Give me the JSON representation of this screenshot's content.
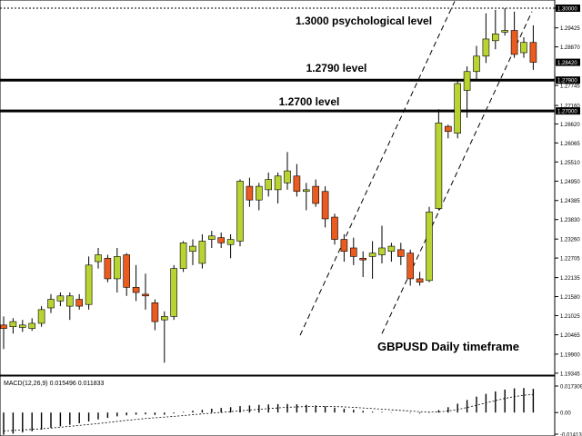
{
  "chart_data": {
    "type": "candlestick",
    "symbol_caption": "GBPUSD Daily timeframe",
    "colors": {
      "bull": "#b8d432",
      "bear": "#ea5b20",
      "wick": "#000000",
      "level_line": "#000000",
      "dotted_line": "#000000",
      "channel": "#000000",
      "highlight_label": "#000000",
      "label_text": "#ffffff"
    },
    "price_axis": {
      "range": [
        1.1934,
        1.3
      ],
      "ticks": [
        "1.30000",
        "1.29425",
        "1.28870",
        "1.27745",
        "1.27160",
        "1.26620",
        "1.26065",
        "1.25510",
        "1.24950",
        "1.24385",
        "1.23830",
        "1.23260",
        "1.22705",
        "1.22135",
        "1.21580",
        "1.21025",
        "1.20465",
        "1.19900",
        "1.19345"
      ]
    },
    "highlighted_prices": [
      "1.30000",
      "1.28420",
      "1.27900",
      "1.27000"
    ],
    "levels": [
      {
        "label": "1.3000 psychological level",
        "price": 1.3,
        "style": "dotted"
      },
      {
        "label": "1.2790 level",
        "price": 1.279,
        "style": "solid"
      },
      {
        "label": "1.2700 level",
        "price": 1.27,
        "style": "solid"
      }
    ],
    "candles": [
      {
        "o": 1.2075,
        "h": 1.21,
        "l": 1.2005,
        "c": 1.2065
      },
      {
        "o": 1.207,
        "h": 1.2095,
        "l": 1.205,
        "c": 1.2085
      },
      {
        "o": 1.2068,
        "h": 1.209,
        "l": 1.2055,
        "c": 1.2075
      },
      {
        "o": 1.2065,
        "h": 1.2095,
        "l": 1.2058,
        "c": 1.208
      },
      {
        "o": 1.208,
        "h": 1.213,
        "l": 1.207,
        "c": 1.212
      },
      {
        "o": 1.2125,
        "h": 1.2165,
        "l": 1.211,
        "c": 1.215
      },
      {
        "o": 1.2145,
        "h": 1.217,
        "l": 1.213,
        "c": 1.216
      },
      {
        "o": 1.213,
        "h": 1.217,
        "l": 1.209,
        "c": 1.216
      },
      {
        "o": 1.215,
        "h": 1.2165,
        "l": 1.212,
        "c": 1.213
      },
      {
        "o": 1.2135,
        "h": 1.2275,
        "l": 1.212,
        "c": 1.225
      },
      {
        "o": 1.226,
        "h": 1.23,
        "l": 1.224,
        "c": 1.228
      },
      {
        "o": 1.227,
        "h": 1.228,
        "l": 1.22,
        "c": 1.221
      },
      {
        "o": 1.221,
        "h": 1.23,
        "l": 1.217,
        "c": 1.2275
      },
      {
        "o": 1.228,
        "h": 1.2285,
        "l": 1.216,
        "c": 1.2185
      },
      {
        "o": 1.2185,
        "h": 1.225,
        "l": 1.2145,
        "c": 1.217
      },
      {
        "o": 1.2165,
        "h": 1.2225,
        "l": 1.212,
        "c": 1.216
      },
      {
        "o": 1.214,
        "h": 1.215,
        "l": 1.206,
        "c": 1.2085
      },
      {
        "o": 1.209,
        "h": 1.2115,
        "l": 1.1965,
        "c": 1.21
      },
      {
        "o": 1.21,
        "h": 1.225,
        "l": 1.209,
        "c": 1.224
      },
      {
        "o": 1.224,
        "h": 1.232,
        "l": 1.223,
        "c": 1.2315
      },
      {
        "o": 1.229,
        "h": 1.2325,
        "l": 1.225,
        "c": 1.2305
      },
      {
        "o": 1.2255,
        "h": 1.234,
        "l": 1.224,
        "c": 1.232
      },
      {
        "o": 1.2325,
        "h": 1.235,
        "l": 1.23,
        "c": 1.2335
      },
      {
        "o": 1.233,
        "h": 1.2345,
        "l": 1.23,
        "c": 1.2315
      },
      {
        "o": 1.231,
        "h": 1.234,
        "l": 1.227,
        "c": 1.2325
      },
      {
        "o": 1.232,
        "h": 1.25,
        "l": 1.2305,
        "c": 1.2495
      },
      {
        "o": 1.248,
        "h": 1.2505,
        "l": 1.242,
        "c": 1.244
      },
      {
        "o": 1.244,
        "h": 1.249,
        "l": 1.241,
        "c": 1.248
      },
      {
        "o": 1.247,
        "h": 1.252,
        "l": 1.245,
        "c": 1.25
      },
      {
        "o": 1.247,
        "h": 1.252,
        "l": 1.243,
        "c": 1.251
      },
      {
        "o": 1.249,
        "h": 1.258,
        "l": 1.247,
        "c": 1.2525
      },
      {
        "o": 1.251,
        "h": 1.2545,
        "l": 1.245,
        "c": 1.2465
      },
      {
        "o": 1.2465,
        "h": 1.249,
        "l": 1.241,
        "c": 1.247
      },
      {
        "o": 1.248,
        "h": 1.25,
        "l": 1.242,
        "c": 1.243
      },
      {
        "o": 1.2465,
        "h": 1.248,
        "l": 1.236,
        "c": 1.2385
      },
      {
        "o": 1.239,
        "h": 1.24,
        "l": 1.231,
        "c": 1.2325
      },
      {
        "o": 1.2325,
        "h": 1.234,
        "l": 1.226,
        "c": 1.229
      },
      {
        "o": 1.23,
        "h": 1.233,
        "l": 1.225,
        "c": 1.2275
      },
      {
        "o": 1.227,
        "h": 1.229,
        "l": 1.2215,
        "c": 1.2265
      },
      {
        "o": 1.2275,
        "h": 1.232,
        "l": 1.221,
        "c": 1.2285
      },
      {
        "o": 1.228,
        "h": 1.2365,
        "l": 1.2255,
        "c": 1.23
      },
      {
        "o": 1.229,
        "h": 1.2315,
        "l": 1.226,
        "c": 1.2305
      },
      {
        "o": 1.2295,
        "h": 1.2315,
        "l": 1.225,
        "c": 1.2275
      },
      {
        "o": 1.2285,
        "h": 1.2295,
        "l": 1.219,
        "c": 1.221
      },
      {
        "o": 1.221,
        "h": 1.223,
        "l": 1.219,
        "c": 1.22
      },
      {
        "o": 1.2205,
        "h": 1.242,
        "l": 1.22,
        "c": 1.2405
      },
      {
        "o": 1.2415,
        "h": 1.2705,
        "l": 1.241,
        "c": 1.2665
      },
      {
        "o": 1.2655,
        "h": 1.266,
        "l": 1.262,
        "c": 1.264
      },
      {
        "o": 1.2635,
        "h": 1.279,
        "l": 1.262,
        "c": 1.278
      },
      {
        "o": 1.276,
        "h": 1.283,
        "l": 1.268,
        "c": 1.2815
      },
      {
        "o": 1.2815,
        "h": 1.289,
        "l": 1.279,
        "c": 1.286
      },
      {
        "o": 1.286,
        "h": 1.2985,
        "l": 1.284,
        "c": 1.291
      },
      {
        "o": 1.2905,
        "h": 1.2995,
        "l": 1.288,
        "c": 1.2925
      },
      {
        "o": 1.293,
        "h": 1.3,
        "l": 1.292,
        "c": 1.2935
      },
      {
        "o": 1.2935,
        "h": 1.299,
        "l": 1.2855,
        "c": 1.2865
      },
      {
        "o": 1.287,
        "h": 1.2915,
        "l": 1.2855,
        "c": 1.29
      },
      {
        "o": 1.29,
        "h": 1.295,
        "l": 1.282,
        "c": 1.2842
      }
    ],
    "macd": {
      "label": "MACD(12,26,9) 0.015496 0.011833",
      "ticks": [
        "0.017309",
        "0.00",
        "-0.01413"
      ],
      "range": [
        -0.01413,
        0.017309
      ],
      "histogram": [
        -0.0145,
        -0.0138,
        -0.013,
        -0.0122,
        -0.0112,
        -0.01,
        -0.009,
        -0.008,
        -0.007,
        -0.0058,
        -0.0045,
        -0.0035,
        -0.0025,
        -0.0018,
        -0.0014,
        -0.0012,
        -0.0016,
        -0.0014,
        -0.0006,
        0.0004,
        0.0012,
        0.0018,
        0.0025,
        0.003,
        0.0035,
        0.0042,
        0.0046,
        0.005,
        0.0053,
        0.0055,
        0.0056,
        0.0054,
        0.005,
        0.0046,
        0.004,
        0.0032,
        0.0025,
        0.0018,
        0.0011,
        0.0006,
        0.0004,
        0.0002,
        0.0,
        -0.0003,
        -0.0006,
        -0.0002,
        0.0016,
        0.0035,
        0.0058,
        0.0082,
        0.0104,
        0.0122,
        0.0138,
        0.015,
        0.0158,
        0.016,
        0.0155
      ],
      "signal": [
        -0.012,
        -0.0117,
        -0.0114,
        -0.011,
        -0.0106,
        -0.0101,
        -0.0096,
        -0.009,
        -0.0084,
        -0.0078,
        -0.0072,
        -0.0065,
        -0.0058,
        -0.0051,
        -0.0045,
        -0.0039,
        -0.0034,
        -0.003,
        -0.0025,
        -0.002,
        -0.0014,
        -0.0009,
        -0.0004,
        0.0001,
        0.0006,
        0.0011,
        0.0016,
        0.0021,
        0.0026,
        0.003,
        0.0034,
        0.0037,
        0.0039,
        0.004,
        0.004,
        0.0039,
        0.0037,
        0.0034,
        0.003,
        0.0026,
        0.0022,
        0.0018,
        0.0014,
        0.001,
        0.0006,
        0.0003,
        0.0004,
        0.001,
        0.002,
        0.0033,
        0.0048,
        0.0063,
        0.0078,
        0.0092,
        0.0104,
        0.0113,
        0.0118
      ]
    }
  }
}
